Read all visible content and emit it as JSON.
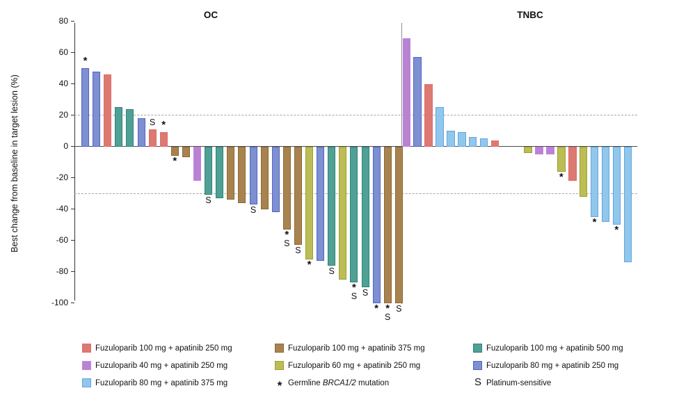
{
  "chart_data": {
    "type": "bar",
    "title": "",
    "ylabel": "Best change from baseline in target lesion (%)",
    "ylim": [
      -100,
      80
    ],
    "yticks": [
      80,
      60,
      40,
      20,
      0,
      -20,
      -40,
      -60,
      -80,
      -100
    ],
    "reference_lines_pct": [
      20,
      -30
    ],
    "grid": "off",
    "legend_position": "bottom",
    "annotation_key": {
      "*": "Germline BRCA1/2 mutation",
      "S": "Platinum-sensitive"
    },
    "groups": {
      "red": {
        "label": "Fuzuloparib 100 mg + apatinib 250 mg",
        "fill": "#DB7A71",
        "edge": "#E5696E"
      },
      "purple": {
        "label": "Fuzuloparib 40 mg + apatinib 250 mg",
        "fill": "#B783D2",
        "edge": "#C97FE6"
      },
      "skyblue": {
        "label": "Fuzuloparib 80 mg + apatinib 375 mg",
        "fill": "#90C7ED",
        "edge": "#65A3DD"
      },
      "brown": {
        "label": "Fuzuloparib 100 mg + apatinib 375 mg",
        "fill": "#A9834F",
        "edge": "#8B6832"
      },
      "olive": {
        "label": "Fuzuloparib 60 mg + apatinib 250 mg",
        "fill": "#BCBD55",
        "edge": "#9EA02F"
      },
      "teal": {
        "label": "Fuzuloparib 100 mg + apatinib 500 mg",
        "fill": "#4FA095",
        "edge": "#2F8274"
      },
      "blue": {
        "label": "Fuzuloparib 80 mg + apatinib 250 mg",
        "fill": "#7D90D0",
        "edge": "#5163C8"
      }
    },
    "panels": [
      {
        "title": "OC",
        "bars": [
          {
            "v": 50,
            "c": "blue",
            "m": "*"
          },
          {
            "v": 48,
            "c": "blue"
          },
          {
            "v": 46,
            "c": "red"
          },
          {
            "v": 25,
            "c": "teal"
          },
          {
            "v": 24,
            "c": "teal"
          },
          {
            "v": 18,
            "c": "blue"
          },
          {
            "v": 11,
            "c": "red",
            "m": "S"
          },
          {
            "v": 9,
            "c": "red",
            "m": "*"
          },
          {
            "v": -6,
            "c": "brown",
            "m": "*"
          },
          {
            "v": -7,
            "c": "brown"
          },
          {
            "v": -22,
            "c": "purple"
          },
          {
            "v": -31,
            "c": "teal",
            "m": "S"
          },
          {
            "v": -33,
            "c": "teal"
          },
          {
            "v": -34,
            "c": "brown"
          },
          {
            "v": -36,
            "c": "brown"
          },
          {
            "v": -37,
            "c": "blue",
            "m": "S"
          },
          {
            "v": -40,
            "c": "brown"
          },
          {
            "v": -42,
            "c": "blue"
          },
          {
            "v": -53,
            "c": "brown",
            "m": "*S"
          },
          {
            "v": -63,
            "c": "brown",
            "m": "S"
          },
          {
            "v": -72,
            "c": "olive",
            "m": "*"
          },
          {
            "v": -73,
            "c": "blue"
          },
          {
            "v": -76,
            "c": "teal",
            "m": "S"
          },
          {
            "v": -85,
            "c": "olive"
          },
          {
            "v": -87,
            "c": "teal",
            "m": "*S"
          },
          {
            "v": -90,
            "c": "teal",
            "m": "S"
          },
          {
            "v": -100,
            "c": "blue",
            "m": "*"
          },
          {
            "v": -100,
            "c": "brown",
            "m": "*S"
          },
          {
            "v": -100,
            "c": "brown",
            "m": "S"
          }
        ]
      },
      {
        "title": "TNBC",
        "bars": [
          {
            "v": 69,
            "c": "purple"
          },
          {
            "v": 57,
            "c": "blue"
          },
          {
            "v": 40,
            "c": "red"
          },
          {
            "v": 25,
            "c": "skyblue"
          },
          {
            "v": 10,
            "c": "skyblue"
          },
          {
            "v": 9,
            "c": "skyblue"
          },
          {
            "v": 6,
            "c": "skyblue"
          },
          {
            "v": 5,
            "c": "skyblue"
          },
          {
            "v": 4,
            "c": "red"
          },
          {
            "v": 0,
            "c": null
          },
          {
            "v": 0,
            "c": null
          },
          {
            "v": -4,
            "c": "olive"
          },
          {
            "v": -5,
            "c": "purple"
          },
          {
            "v": -5,
            "c": "purple"
          },
          {
            "v": -16,
            "c": "olive",
            "m": "*"
          },
          {
            "v": -22,
            "c": "red"
          },
          {
            "v": -32,
            "c": "olive"
          },
          {
            "v": -45,
            "c": "skyblue",
            "m": "*"
          },
          {
            "v": -48,
            "c": "skyblue"
          },
          {
            "v": -50,
            "c": "skyblue",
            "m": "*"
          },
          {
            "v": -74,
            "c": "skyblue"
          }
        ]
      }
    ]
  },
  "legend": {
    "columns": [
      [
        {
          "group": "red"
        },
        {
          "group": "purple"
        },
        {
          "group": "skyblue"
        }
      ],
      [
        {
          "group": "brown"
        },
        {
          "group": "olive"
        },
        {
          "symbol": "*",
          "parts": [
            [
              "Germline ",
              false
            ],
            [
              "BRCA1/2",
              true
            ],
            [
              " mutation",
              false
            ]
          ]
        }
      ],
      [
        {
          "group": "teal"
        },
        {
          "group": "blue"
        },
        {
          "symbol": "S",
          "parts": [
            [
              "Platinum-sensitive",
              false
            ]
          ]
        }
      ]
    ]
  }
}
